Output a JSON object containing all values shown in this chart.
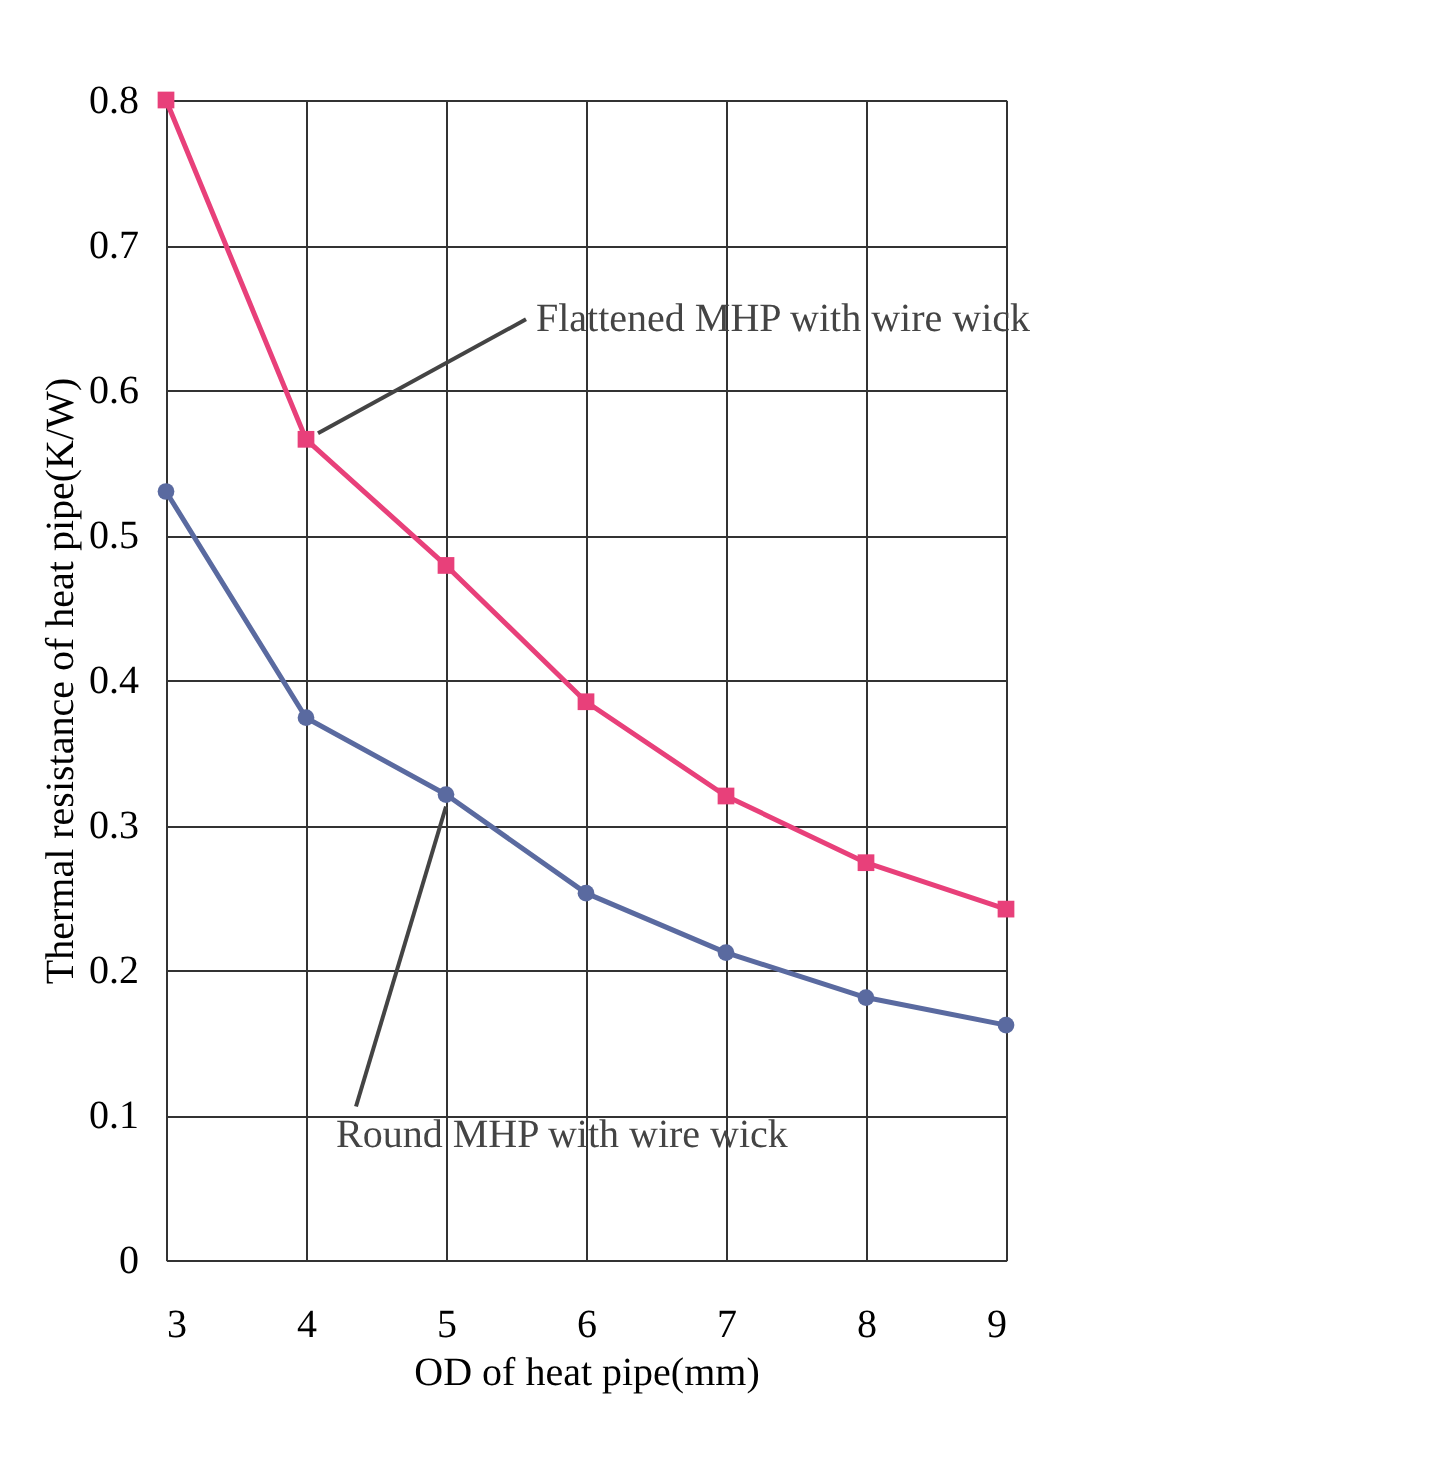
{
  "chart_data": {
    "type": "line",
    "xlabel": "OD of heat pipe(mm)",
    "ylabel": "Thermal resistance of heat pipe(K/W)",
    "x": [
      3,
      4,
      5,
      6,
      7,
      8,
      9
    ],
    "series": [
      {
        "color": "#e8407a",
        "marker": "square",
        "values": [
          0.8,
          0.566,
          0.479,
          0.385,
          0.32,
          0.274,
          0.242
        ]
      },
      {
        "color": "#5a6aa0",
        "marker": "circle",
        "values": [
          0.53,
          0.374,
          0.321,
          0.253,
          0.212,
          0.181,
          0.162
        ]
      }
    ],
    "xlim": [
      3,
      9
    ],
    "ylim": [
      0,
      0.8
    ],
    "xticks": [
      3,
      4,
      5,
      6,
      7,
      8,
      9
    ],
    "yticks": [
      0,
      0.1,
      0.2,
      0.3,
      0.4,
      0.5,
      0.6,
      0.7,
      0.8
    ],
    "grid": true,
    "annotations": [
      {
        "text": "Flattened MHP with wire wick",
        "x": 4,
        "y": 0.566
      },
      {
        "text": "Round MHP with wire wick",
        "x": 5,
        "y": 0.321
      }
    ]
  }
}
